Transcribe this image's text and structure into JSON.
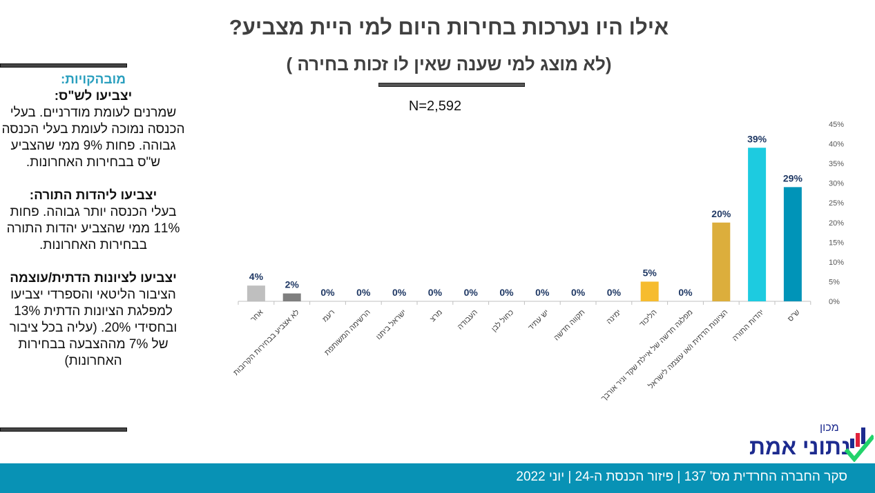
{
  "header": {
    "title": "אילו היו נערכות בחירות היום למי היית מצביע?",
    "subtitle": "(לא מוצג למי שענה שאין לו זכות בחירה )",
    "n": "N=2,592"
  },
  "sidebar": {
    "heading": "מובהקויות:",
    "s1_title": "יצביעו לש\"ס:",
    "s1_body": "שמרנים לעומת מודרניים. בעלי הכנסה נמוכה לעומת בעלי הכנסה גבוהה. פחות 9% ממי שהצביע ש\"ס בבחירות האחרונות.",
    "s2_title": "יצביעו ליהדות התורה:",
    "s2_body": "בעלי הכנסה יותר גבוהה. פחות 11% ממי שהצביע יהדות התורה בבחירות האחרונות.",
    "s3_title": "יצביעו לציונות הדתית/עוצמה",
    "s3_body": "הציבור הליטאי והספרדי יצביעו למפלגת  הציונות הדתית 13% ובחסידי 20%. (עליה בכל ציבור של 7% מההצבעה בבחירות האחרונות)"
  },
  "chart_data": {
    "type": "bar",
    "categories": [
      "אחר",
      "לא אצביע בבחירות הקרובות",
      "רעמ",
      "הרשימה המשותפת",
      "ישראל ביתנו",
      "מרצ",
      "העבודה",
      "כחול לבן",
      "יש עתיד",
      "תקווה חדשה",
      "ימינה",
      "הליכוד",
      "מפלגה חדשה של איילת שקד וניר אורבך",
      "הציונות הדתית ו/או עוצמה לישראל",
      "יהדות התורה",
      "ש\"ס"
    ],
    "values": [
      4,
      2,
      0,
      0,
      0,
      0,
      0,
      0,
      0,
      0,
      0,
      5,
      0,
      20,
      39,
      29
    ],
    "data_labels": [
      "4%",
      "2%",
      "0%",
      "0%",
      "0%",
      "0%",
      "0%",
      "0%",
      "0%",
      "0%",
      "0%",
      "5%",
      "0%",
      "20%",
      "39%",
      "29%"
    ],
    "colors": [
      "#bfbfbf",
      "#7f7f7f",
      "#bfbfbf",
      "#bfbfbf",
      "#bfbfbf",
      "#bfbfbf",
      "#bfbfbf",
      "#bfbfbf",
      "#bfbfbf",
      "#bfbfbf",
      "#bfbfbf",
      "#f6bc2f",
      "#bfbfbf",
      "#dcae3c",
      "#1dcbe0",
      "#0094b8"
    ],
    "ylim": [
      0,
      45
    ],
    "yticks": [
      "0%",
      "5%",
      "10%",
      "15%",
      "20%",
      "25%",
      "30%",
      "35%",
      "40%",
      "45%"
    ],
    "yaxis_position": "right",
    "grid": false
  },
  "logo": {
    "small": "מכון",
    "big": "נתוני אמת"
  },
  "footer": {
    "text": "סקר החברה החרדית מס' 137 | פיזור הכנסת ה-24 | יוני 2022"
  }
}
